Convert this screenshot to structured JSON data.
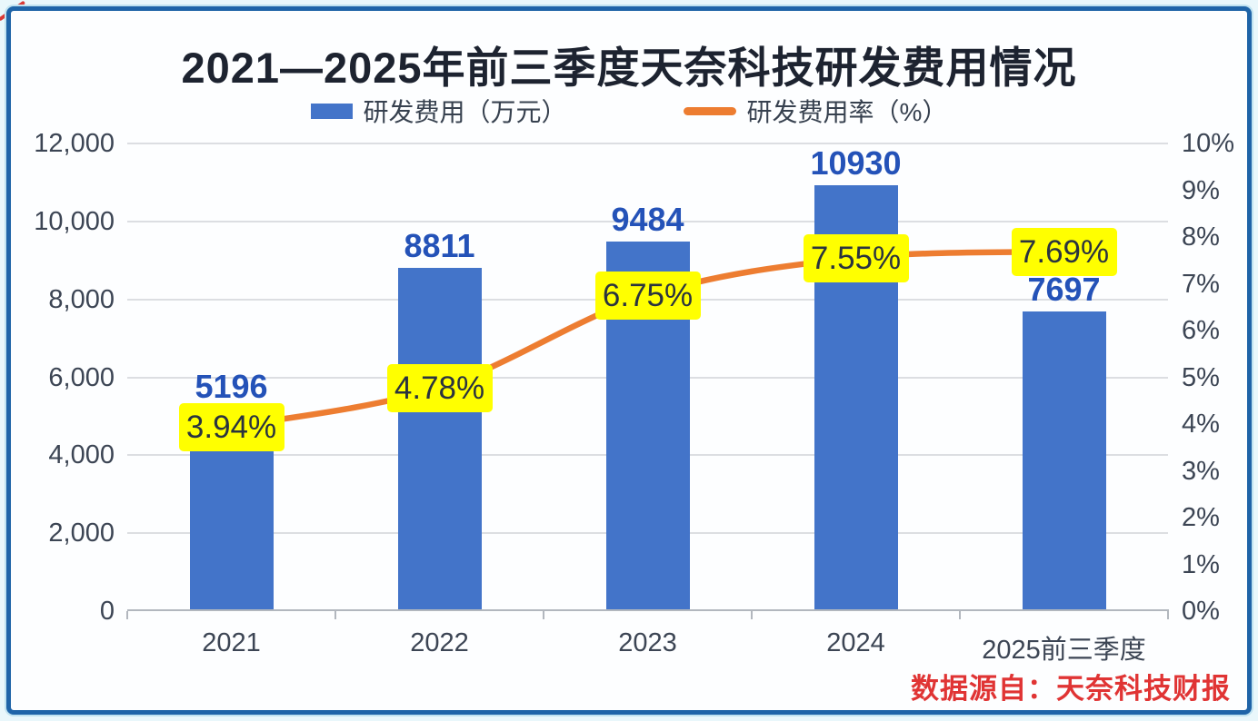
{
  "title": "2021—2025年前三季度天奈科技研发费用情况",
  "legend": {
    "bar_label": "研发费用（万元）",
    "line_label": "研发费用率（%）"
  },
  "source_note": "数据源自：天奈科技财报",
  "colors": {
    "bar": "#4374C9",
    "bar_value_label": "#2452B8",
    "line": "#ED7D31",
    "point_label_bg": "#FFFF00",
    "point_label_text": "#2a333f",
    "frame_border": "#1f64a8",
    "source_text": "#e03434"
  },
  "chart_data": {
    "type": "bar",
    "subtype": "bar+line combo",
    "title": "2021—2025年前三季度天奈科技研发费用情况",
    "categories": [
      "2021",
      "2022",
      "2023",
      "2024",
      "2025前三季度"
    ],
    "series": [
      {
        "name": "研发费用（万元）",
        "type": "bar",
        "axis": "left",
        "values": [
          5196,
          8811,
          9484,
          10930,
          7697
        ],
        "labels": [
          "5196",
          "8811",
          "9484",
          "10930",
          "7697"
        ],
        "color": "#4374C9"
      },
      {
        "name": "研发费用率（%）",
        "type": "line",
        "axis": "right",
        "values": [
          3.94,
          4.78,
          6.75,
          7.55,
          7.69
        ],
        "labels": [
          "3.94%",
          "4.78%",
          "6.75%",
          "7.55%",
          "7.69%"
        ],
        "color": "#ED7D31"
      }
    ],
    "left_axis": {
      "min": 0,
      "max": 12000,
      "step": 2000,
      "tick_labels": [
        "0",
        "2,000",
        "4,000",
        "6,000",
        "8,000",
        "10,000",
        "12,000"
      ]
    },
    "right_axis": {
      "min": 0,
      "max": 10,
      "step": 1,
      "tick_labels": [
        "0%",
        "1%",
        "2%",
        "3%",
        "4%",
        "5%",
        "6%",
        "7%",
        "8%",
        "9%",
        "10%"
      ]
    },
    "grid": true,
    "legend_position": "top"
  }
}
